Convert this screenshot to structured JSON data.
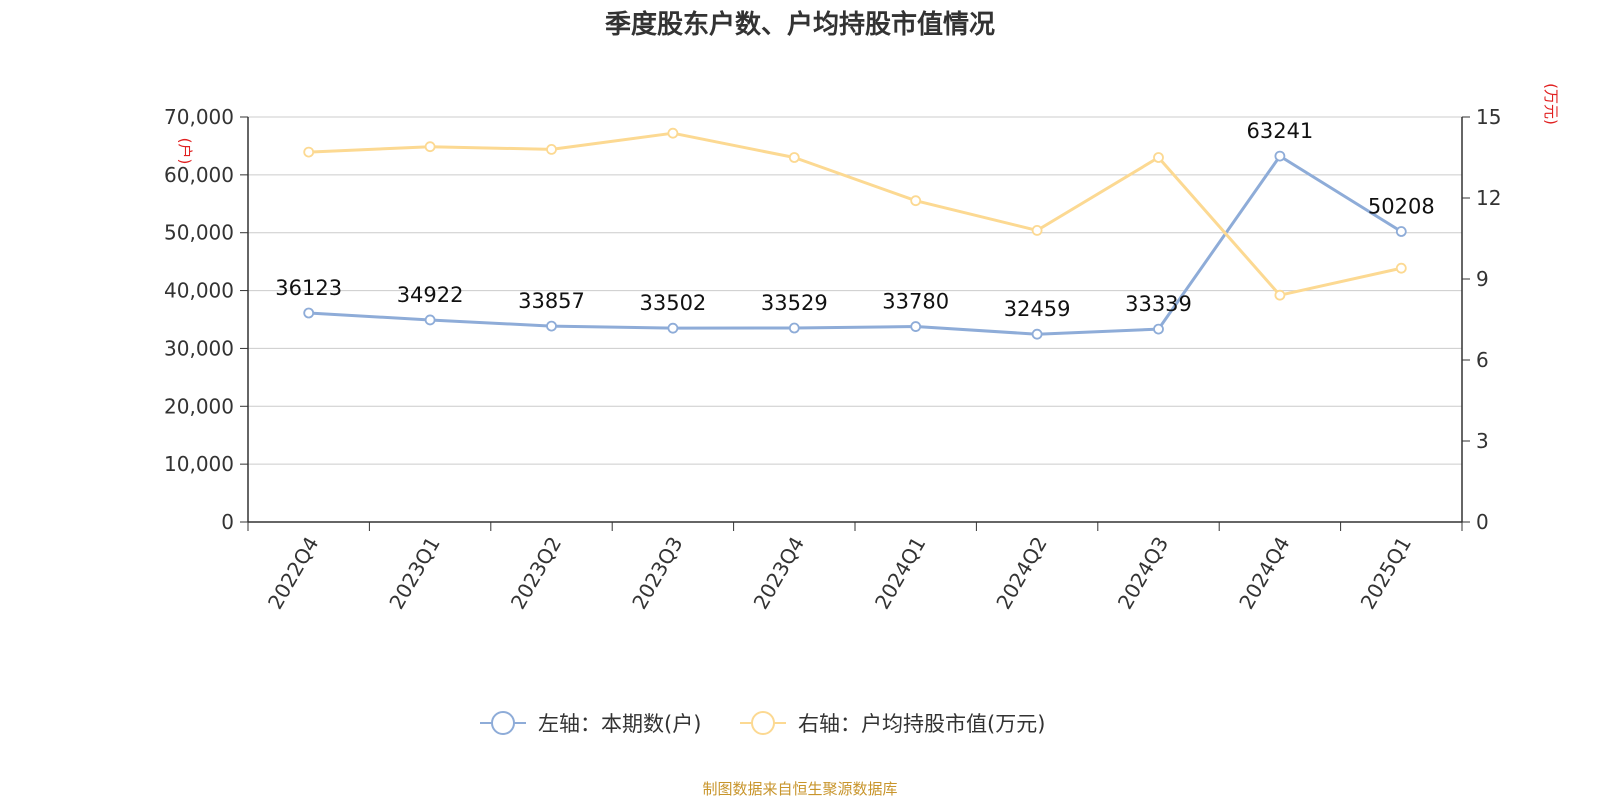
{
  "title": "季度股东户数、户均持股市值情况",
  "source": "制图数据来自恒生聚源数据库",
  "colors": {
    "series1": "#8eacd8",
    "series2": "#fcd992",
    "unit": "#e02020",
    "grid": "#cccccc",
    "axis": "#333333",
    "source": "#c8952c"
  },
  "chart_data": {
    "type": "line",
    "title": "季度股东户数、户均持股市值情况",
    "categories": [
      "2022Q4",
      "2023Q1",
      "2023Q2",
      "2023Q3",
      "2023Q4",
      "2024Q1",
      "2024Q2",
      "2024Q3",
      "2024Q4",
      "2025Q1"
    ],
    "left_axis": {
      "unit": "(户)",
      "min": 0,
      "max": 70000,
      "ticks": [
        0,
        10000,
        20000,
        30000,
        40000,
        50000,
        60000,
        70000
      ],
      "tick_labels": [
        "0",
        "10,000",
        "20,000",
        "30,000",
        "40,000",
        "50,000",
        "60,000",
        "70,000"
      ]
    },
    "right_axis": {
      "unit": "(万元)",
      "min": 0,
      "max": 15,
      "ticks": [
        0,
        3,
        6,
        9,
        12,
        15
      ],
      "tick_labels": [
        "0",
        "3",
        "6",
        "9",
        "12",
        "15"
      ]
    },
    "grid": true,
    "legend_position": "bottom",
    "series": [
      {
        "name": "左轴：本期数(户)",
        "axis": "left",
        "values": [
          36123,
          34922,
          33857,
          33502,
          33529,
          33780,
          32459,
          33339,
          63241,
          50208
        ],
        "labels": [
          "36123",
          "34922",
          "33857",
          "33502",
          "33529",
          "33780",
          "32459",
          "33339",
          "63241",
          "50208"
        ]
      },
      {
        "name": "右轴：户均持股市值(万元)",
        "axis": "right",
        "values": [
          13.7,
          13.9,
          13.8,
          14.4,
          13.5,
          11.9,
          10.8,
          13.5,
          8.4,
          9.4
        ]
      }
    ]
  }
}
